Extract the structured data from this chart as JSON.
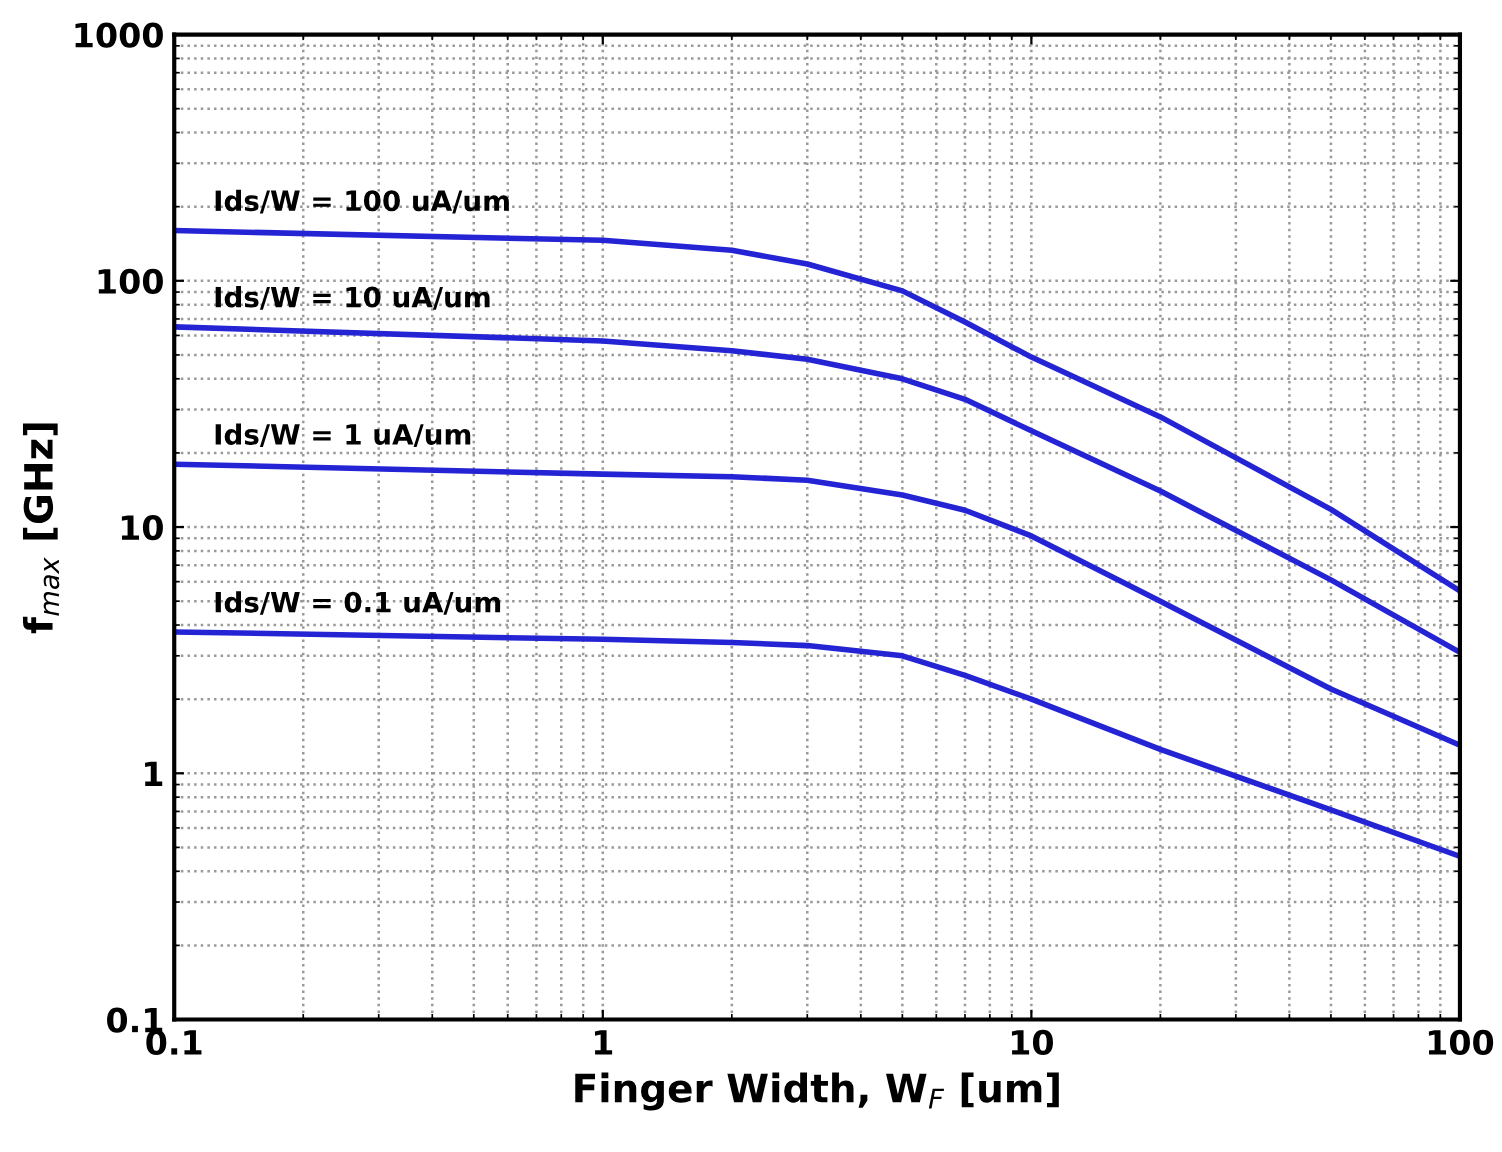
{
  "chart_data": {
    "type": "line",
    "xlabel": "Finger Width, W$_{F}$ [um]",
    "ylabel": "f$_{max}$ [GHz]",
    "log": "xy",
    "xlim": [
      0.1,
      100
    ],
    "ylim": [
      0.1,
      1000
    ],
    "xticks": [
      0.1,
      1,
      10,
      100
    ],
    "yticks": [
      0.1,
      1,
      10,
      100,
      1000
    ],
    "grid": true,
    "legend": false,
    "marker": "none",
    "line_style": "solid",
    "x": [
      0.1,
      1,
      2,
      3,
      5,
      7,
      10,
      20,
      50,
      100
    ],
    "series": [
      {
        "name": "Ids/W = 100 uA/um",
        "color": "#2424d4",
        "values": [
          160,
          146,
          133,
          117,
          91,
          68,
          49,
          28,
          11.8,
          5.5
        ]
      },
      {
        "name": "Ids/W = 10 uA/um",
        "color": "#2424d4",
        "values": [
          65,
          57,
          52,
          48,
          40,
          33,
          24.6,
          14,
          6.1,
          3.1
        ]
      },
      {
        "name": "Ids/W = 1 uA/um",
        "color": "#2424d4",
        "values": [
          18,
          16.4,
          16,
          15.5,
          13.5,
          11.7,
          9.2,
          5.0,
          2.2,
          1.3
        ]
      },
      {
        "name": "Ids/W = 0.1 uA/um",
        "color": "#2424d4",
        "values": [
          3.75,
          3.5,
          3.4,
          3.3,
          3.0,
          2.5,
          2.0,
          1.25,
          0.71,
          0.46
        ]
      }
    ]
  }
}
